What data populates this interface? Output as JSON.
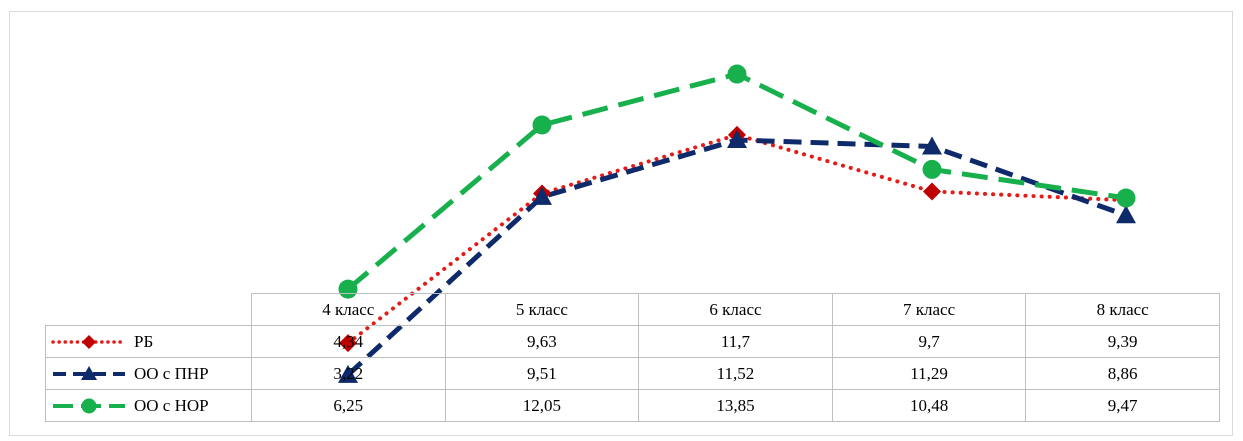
{
  "chart_data": {
    "type": "line",
    "categories": [
      "4 класс",
      "5 класс",
      "6 класс",
      "7 класс",
      "8 класс"
    ],
    "series": [
      {
        "name": "РБ",
        "values": [
          4.34,
          9.63,
          11.7,
          9.7,
          9.39
        ],
        "color": "#e41b17",
        "marker_color": "#c00000",
        "marker": "diamond",
        "dash": "dotted"
      },
      {
        "name": "ОО с ПНР",
        "values": [
          3.22,
          9.51,
          11.52,
          11.29,
          8.86
        ],
        "color": "#0e2a6b",
        "marker_color": "#0e2a6b",
        "marker": "triangle",
        "dash": "dashed"
      },
      {
        "name": "ОО с НОР",
        "values": [
          6.25,
          12.05,
          13.85,
          10.48,
          9.47
        ],
        "color": "#18b04d",
        "marker_color": "#18b04d",
        "marker": "circle",
        "dash": "long-dash"
      }
    ],
    "ylim": [
      0,
      15
    ],
    "grid": false,
    "legend": "data-table"
  }
}
